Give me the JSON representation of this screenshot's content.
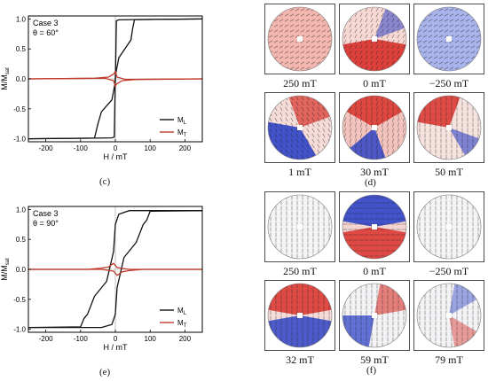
{
  "figure": {
    "panel_letters": [
      "(c)",
      "(d)",
      "(e)",
      "(f)"
    ],
    "maps_d": [
      "250 mT",
      "0 mT",
      "−250 mT",
      "1 mT",
      "30 mT",
      "50 mT"
    ],
    "maps_f": [
      "250 mT",
      "0 mT",
      "−250 mT",
      "32 mT",
      "59 mT",
      "79 mT"
    ]
  },
  "colors": {
    "ML": "#111111",
    "MT": "#c0392b",
    "red": "#d9302a",
    "blue": "#2f44c8"
  },
  "chart_data": [
    {
      "type": "line",
      "panel": "(c)",
      "annotation": [
        "Case 3",
        "θ = 60°"
      ],
      "xlabel": "H / mT",
      "ylabel": "M/M_sat",
      "xlim": [
        -250,
        250
      ],
      "ylim": [
        -1.05,
        1.05
      ],
      "xticks": [
        -200,
        -100,
        0,
        100,
        200
      ],
      "yticks": [
        1.0,
        0.5,
        0.0,
        -0.5,
        -1.0
      ],
      "legend": {
        "position": "bottom-right",
        "entries": [
          "ML",
          "MT"
        ]
      },
      "series": [
        {
          "name": "ML",
          "segments": [
            [
              [
                -250,
                -1.0
              ],
              [
                -60,
                -0.99
              ],
              [
                -50,
                -0.75
              ],
              [
                -40,
                -0.55
              ],
              [
                -10,
                -0.35
              ],
              [
                0,
                -0.05
              ],
              [
                3,
                0.97
              ],
              [
                10,
                0.985
              ],
              [
                50,
                0.99
              ],
              [
                250,
                1.0
              ]
            ],
            [
              [
                250,
                1.0
              ],
              [
                55,
                0.99
              ],
              [
                50,
                0.85
              ],
              [
                45,
                0.65
              ],
              [
                10,
                0.35
              ],
              [
                0,
                0.05
              ],
              [
                -3,
                -0.97
              ],
              [
                -10,
                -0.985
              ],
              [
                -55,
                -0.99
              ],
              [
                -250,
                -1.0
              ]
            ]
          ]
        },
        {
          "name": "MT",
          "segments": [
            [
              [
                -250,
                0.0
              ],
              [
                -60,
                0.01
              ],
              [
                -20,
                0.03
              ],
              [
                -5,
                0.08
              ],
              [
                0,
                0.12
              ],
              [
                5,
                0.03
              ],
              [
                30,
                -0.01
              ],
              [
                250,
                0.0
              ]
            ],
            [
              [
                250,
                0.0
              ],
              [
                60,
                -0.01
              ],
              [
                20,
                -0.03
              ],
              [
                5,
                -0.08
              ],
              [
                0,
                -0.12
              ],
              [
                -5,
                -0.03
              ],
              [
                -30,
                0.01
              ],
              [
                -250,
                0.0
              ]
            ]
          ]
        }
      ]
    },
    {
      "type": "line",
      "panel": "(e)",
      "annotation": [
        "Case 3",
        "θ = 90°"
      ],
      "xlabel": "H / mT",
      "ylabel": "M/M_sat",
      "xlim": [
        -250,
        250
      ],
      "ylim": [
        -1.05,
        1.05
      ],
      "xticks": [
        -200,
        -100,
        0,
        100,
        200
      ],
      "yticks": [
        1.0,
        0.5,
        0.0,
        -0.5,
        -1.0
      ],
      "legend": {
        "position": "bottom-right",
        "entries": [
          "ML",
          "MT"
        ]
      },
      "series": [
        {
          "name": "ML",
          "segments": [
            [
              [
                -250,
                -0.97
              ],
              [
                -100,
                -0.96
              ],
              [
                -90,
                -0.82
              ],
              [
                -80,
                -0.75
              ],
              [
                -60,
                -0.45
              ],
              [
                -25,
                -0.2
              ],
              [
                -5,
                0.3
              ],
              [
                0,
                0.75
              ],
              [
                10,
                0.92
              ],
              [
                40,
                0.98
              ],
              [
                250,
                0.98
              ]
            ],
            [
              [
                250,
                0.98
              ],
              [
                100,
                0.97
              ],
              [
                90,
                0.82
              ],
              [
                80,
                0.75
              ],
              [
                60,
                0.45
              ],
              [
                25,
                0.2
              ],
              [
                5,
                -0.3
              ],
              [
                0,
                -0.75
              ],
              [
                -10,
                -0.92
              ],
              [
                -40,
                -0.97
              ],
              [
                -250,
                -0.97
              ]
            ]
          ]
        },
        {
          "name": "MT",
          "segments": [
            [
              [
                -250,
                0.0
              ],
              [
                -80,
                0.0
              ],
              [
                -40,
                0.02
              ],
              [
                -20,
                0.04
              ],
              [
                -5,
                0.1
              ],
              [
                5,
                0.03
              ],
              [
                40,
                0.0
              ],
              [
                250,
                0.0
              ]
            ],
            [
              [
                250,
                0.0
              ],
              [
                80,
                0.0
              ],
              [
                40,
                -0.02
              ],
              [
                20,
                -0.04
              ],
              [
                5,
                -0.1
              ],
              [
                -5,
                -0.03
              ],
              [
                -40,
                0.0
              ],
              [
                -250,
                0.0
              ]
            ]
          ]
        }
      ]
    }
  ]
}
